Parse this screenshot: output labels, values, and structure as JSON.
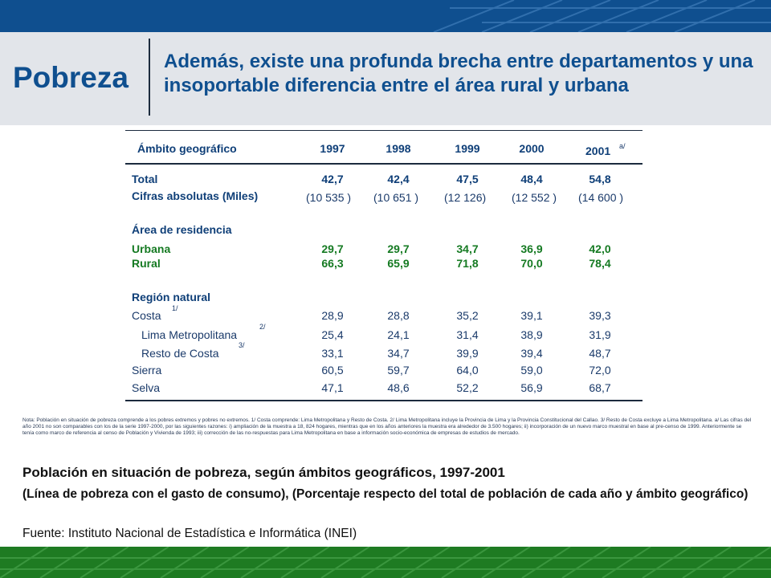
{
  "header": {
    "section_title": "Pobreza",
    "headline": "Además, existe una profunda brecha entre departamentos y una insoportable diferencia entre el área rural y urbana"
  },
  "table": {
    "col0_header": "Ámbito geográfico",
    "years": [
      "1997",
      "1998",
      "1999",
      "2000",
      "2001"
    ],
    "year_2001_note": "a/",
    "rows": {
      "total": {
        "label": "Total",
        "values": [
          "42,7",
          "42,4",
          "47,5",
          "48,4",
          "54,8"
        ]
      },
      "cifras": {
        "label": "Cifras absolutas (Miles)",
        "values": [
          "(10 535 )",
          "(10 651 )",
          "(12 126)",
          "(12 552 )",
          "(14 600 )"
        ]
      },
      "area_heading": "Área de residencia",
      "urbana": {
        "label": "Urbana",
        "values": [
          "29,7",
          "29,7",
          "34,7",
          "36,9",
          "42,0"
        ]
      },
      "rural": {
        "label": "Rural",
        "values": [
          "66,3",
          "65,9",
          "71,8",
          "70,0",
          "78,4"
        ]
      },
      "region_heading": "Región natural",
      "costa": {
        "label": "Costa",
        "note": "1/",
        "values": [
          "28,9",
          "28,8",
          "35,2",
          "39,1",
          "39,3"
        ]
      },
      "lima": {
        "label": "Lima Metropolitana",
        "note": "2/",
        "values": [
          "25,4",
          "24,1",
          "31,4",
          "38,9",
          "31,9"
        ]
      },
      "resto": {
        "label": "Resto de Costa",
        "note": "3/",
        "values": [
          "33,1",
          "34,7",
          "39,9",
          "39,4",
          "48,7"
        ]
      },
      "sierra": {
        "label": "Sierra",
        "values": [
          "60,5",
          "59,7",
          "64,0",
          "59,0",
          "72,0"
        ]
      },
      "selva": {
        "label": "Selva",
        "values": [
          "47,1",
          "48,6",
          "52,2",
          "56,9",
          "68,7"
        ]
      }
    }
  },
  "note": "Nota: Población en situación de pobreza comprende a los pobres extremos y pobres no extremos. 1/ Costa comprende: Lima Metropolitana y Resto de Costa. 2/ Lima Metropolitana incluye la Provincia de Lima y la Provincia Constitucional del Callao. 3/ Resto de Costa excluye a Lima Metropolitana. a/ Las cifras del año 2001 no son comparables con los de la serie 1997-2000, por las siguientes razones: i) ampliación de la muestra a 18, 824 hogares, mientras que en los años anteriores la muestra era alrededor de 3.500 hogares; ii) incorporación de un nuevo marco muestral en base al pre-censo de 1999. Anteriormente se tenía como marco de referencia al censo de Población y Vivienda de 1993; iii) corrección de las no-respuestas para Lima Metropolitana en base a información socio-económica de empresas de estudios de mercado.",
  "caption": {
    "title": "Población en situación de pobreza, según ámbitos geográficos, 1997-2001",
    "subtitle": "(Línea de pobreza con el gasto de consumo), (Porcentaje respecto del total de población de cada año y ámbito geográfico)",
    "source": "Fuente: Instituto Nacional de Estadística e Informática (INEI)"
  },
  "colors": {
    "brand_blue": "#0f4f8f",
    "header_gray": "#e2e5ea",
    "footer_green": "#1e7b22",
    "highlight_green": "#157a22"
  }
}
